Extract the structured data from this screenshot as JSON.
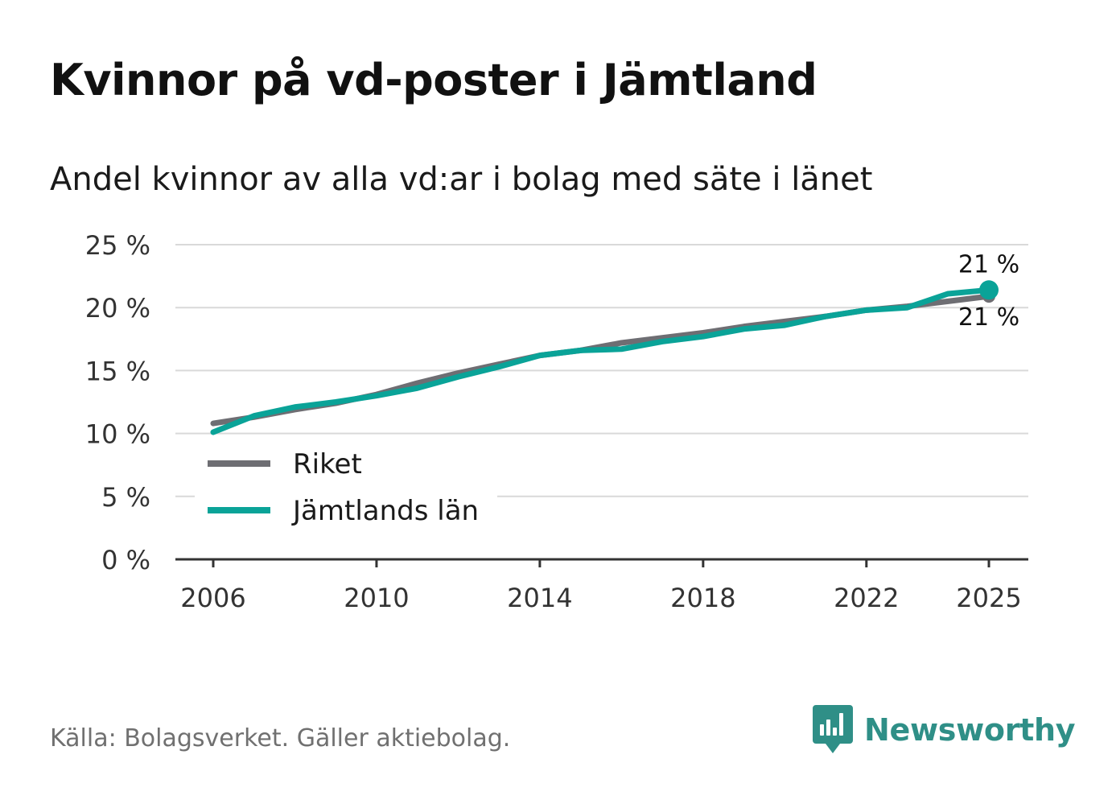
{
  "title": "Kvinnor på vd-poster i Jämtland",
  "subtitle": "Andel kvinnor av alla vd:ar i bolag med säte i länet",
  "source": "Källa: Bolagsverket. Gäller aktiebolag.",
  "brand": {
    "name": "Newsworthy",
    "icon": "newsworthy-logo-icon"
  },
  "colors": {
    "riket": "#6e6e73",
    "jamtland": "#0aa398",
    "grid": "#d9d9d9",
    "axis": "#333333"
  },
  "chart_data": {
    "type": "line",
    "title": "Kvinnor på vd-poster i Jämtland",
    "xlabel": "",
    "ylabel": "",
    "x": [
      2006,
      2007,
      2008,
      2009,
      2010,
      2011,
      2012,
      2013,
      2014,
      2015,
      2016,
      2017,
      2018,
      2019,
      2020,
      2021,
      2022,
      2023,
      2024,
      2025
    ],
    "ylim": [
      0,
      25
    ],
    "xlim": [
      2006,
      2025
    ],
    "yticks": [
      0,
      5,
      10,
      15,
      20,
      25
    ],
    "ytick_labels": [
      "0 %",
      "5 %",
      "10 %",
      "15 %",
      "20 %",
      "25 %"
    ],
    "xticks": [
      2006,
      2010,
      2014,
      2018,
      2022,
      2025
    ],
    "xtick_labels": [
      "2006",
      "2010",
      "2014",
      "2018",
      "2022",
      "2025"
    ],
    "grid": true,
    "legend_position": "bottom-left",
    "series": [
      {
        "name": "Riket",
        "color": "#6e6e73",
        "values": [
          10.8,
          11.3,
          11.9,
          12.4,
          13.1,
          14.0,
          14.8,
          15.5,
          16.2,
          16.6,
          17.2,
          17.6,
          18.0,
          18.5,
          18.9,
          19.3,
          19.8,
          20.1,
          20.5,
          20.9
        ],
        "end_label": "21 %"
      },
      {
        "name": "Jämtlands län",
        "color": "#0aa398",
        "values": [
          10.1,
          11.4,
          12.1,
          12.5,
          13.0,
          13.6,
          14.5,
          15.3,
          16.2,
          16.6,
          16.7,
          17.3,
          17.7,
          18.3,
          18.6,
          19.3,
          19.8,
          20.0,
          21.1,
          21.4
        ],
        "end_label": "21 %"
      }
    ]
  }
}
